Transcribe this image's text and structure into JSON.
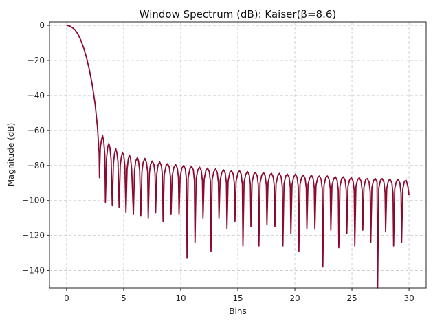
{
  "chart_data": {
    "type": "line",
    "title": "Window Spectrum (dB): Kaiser(β=8.6)",
    "xlabel": "Bins",
    "ylabel": "Magnitude (dB)",
    "xlim": [
      -1.5,
      31.5
    ],
    "ylim": [
      -150,
      2
    ],
    "xticks": [
      0,
      5,
      10,
      15,
      20,
      25,
      30
    ],
    "yticks": [
      0,
      -20,
      -40,
      -60,
      -80,
      -100,
      -120,
      -140
    ],
    "grid": true,
    "line_color": "#8b0a2e",
    "series": [
      {
        "points": [
          [
            0,
            0
          ],
          [
            0.25,
            -0.3
          ],
          [
            0.5,
            -1.2
          ],
          [
            0.75,
            -2.6
          ],
          [
            1.0,
            -5.0
          ],
          [
            1.25,
            -8.5
          ],
          [
            1.5,
            -13.0
          ],
          [
            1.75,
            -18.5
          ],
          [
            2.0,
            -25.5
          ],
          [
            2.25,
            -34.0
          ],
          [
            2.5,
            -45.0
          ],
          [
            2.7,
            -58.0
          ],
          [
            2.85,
            -73.0
          ],
          [
            2.88,
            -87.0
          ],
          [
            2.95,
            -70.0
          ],
          [
            3.05,
            -65.5
          ],
          [
            3.15,
            -63.0
          ],
          [
            3.25,
            -66.0
          ],
          [
            3.35,
            -74.0
          ],
          [
            3.4,
            -101.0
          ],
          [
            3.5,
            -76.0
          ],
          [
            3.6,
            -69.5
          ],
          [
            3.7,
            -67.5
          ],
          [
            3.8,
            -70.0
          ],
          [
            3.9,
            -77.0
          ],
          [
            4.0,
            -103.0
          ],
          [
            4.1,
            -79.0
          ],
          [
            4.2,
            -73.0
          ],
          [
            4.3,
            -70.5
          ],
          [
            4.4,
            -72.5
          ],
          [
            4.5,
            -78.0
          ],
          [
            4.6,
            -104.0
          ],
          [
            4.7,
            -80.0
          ],
          [
            4.8,
            -75.0
          ],
          [
            4.9,
            -72.5
          ],
          [
            5.0,
            -74.0
          ],
          [
            5.1,
            -80.0
          ],
          [
            5.2,
            -107.0
          ],
          [
            5.3,
            -82.0
          ],
          [
            5.4,
            -76.5
          ],
          [
            5.5,
            -74.0
          ],
          [
            5.6,
            -76.0
          ],
          [
            5.7,
            -82.0
          ],
          [
            5.85,
            -108.0
          ],
          [
            5.95,
            -83.0
          ],
          [
            6.05,
            -77.5
          ],
          [
            6.2,
            -75.5
          ],
          [
            6.3,
            -77.5
          ],
          [
            6.4,
            -83.0
          ],
          [
            6.5,
            -109.0
          ],
          [
            6.6,
            -83.5
          ],
          [
            6.7,
            -78.5
          ],
          [
            6.85,
            -76.0
          ],
          [
            7.0,
            -78.5
          ],
          [
            7.1,
            -84.0
          ],
          [
            7.15,
            -110.0
          ],
          [
            7.25,
            -84.5
          ],
          [
            7.35,
            -79.5
          ],
          [
            7.5,
            -77.5
          ],
          [
            7.65,
            -79.5
          ],
          [
            7.75,
            -85.0
          ],
          [
            7.8,
            -107.0
          ],
          [
            7.9,
            -85.0
          ],
          [
            8.0,
            -80.0
          ],
          [
            8.15,
            -78.0
          ],
          [
            8.3,
            -80.0
          ],
          [
            8.4,
            -86.0
          ],
          [
            8.45,
            -112.0
          ],
          [
            8.55,
            -85.5
          ],
          [
            8.7,
            -80.5
          ],
          [
            8.85,
            -79.0
          ],
          [
            9.0,
            -81.0
          ],
          [
            9.1,
            -86.5
          ],
          [
            9.15,
            -108.0
          ],
          [
            9.25,
            -86.0
          ],
          [
            9.4,
            -81.0
          ],
          [
            9.55,
            -79.5
          ],
          [
            9.7,
            -81.5
          ],
          [
            9.8,
            -87.0
          ],
          [
            9.85,
            -108.0
          ],
          [
            9.95,
            -86.5
          ],
          [
            10.1,
            -81.5
          ],
          [
            10.25,
            -80.0
          ],
          [
            10.4,
            -82.0
          ],
          [
            10.5,
            -88.0
          ],
          [
            10.55,
            -133.0
          ],
          [
            10.65,
            -87.0
          ],
          [
            10.8,
            -82.0
          ],
          [
            10.95,
            -80.5
          ],
          [
            11.1,
            -82.5
          ],
          [
            11.2,
            -89.0
          ],
          [
            11.25,
            -124.0
          ],
          [
            11.35,
            -87.5
          ],
          [
            11.5,
            -82.5
          ],
          [
            11.65,
            -81.0
          ],
          [
            11.8,
            -83.0
          ],
          [
            11.9,
            -89.0
          ],
          [
            11.95,
            -110.0
          ],
          [
            12.05,
            -88.0
          ],
          [
            12.2,
            -83.0
          ],
          [
            12.35,
            -81.5
          ],
          [
            12.5,
            -83.5
          ],
          [
            12.6,
            -89.5
          ],
          [
            12.65,
            -129.0
          ],
          [
            12.75,
            -88.0
          ],
          [
            12.9,
            -83.5
          ],
          [
            13.05,
            -82.0
          ],
          [
            13.2,
            -84.0
          ],
          [
            13.3,
            -90.0
          ],
          [
            13.35,
            -110.0
          ],
          [
            13.45,
            -88.5
          ],
          [
            13.6,
            -84.0
          ],
          [
            13.75,
            -82.5
          ],
          [
            13.9,
            -84.5
          ],
          [
            14.0,
            -90.0
          ],
          [
            14.05,
            -116.0
          ],
          [
            14.15,
            -89.0
          ],
          [
            14.3,
            -84.0
          ],
          [
            14.45,
            -83.0
          ],
          [
            14.6,
            -85.0
          ],
          [
            14.7,
            -90.5
          ],
          [
            14.75,
            -112.0
          ],
          [
            14.85,
            -89.0
          ],
          [
            15.0,
            -84.5
          ],
          [
            15.15,
            -83.0
          ],
          [
            15.3,
            -85.0
          ],
          [
            15.4,
            -91.0
          ],
          [
            15.45,
            -126.0
          ],
          [
            15.55,
            -89.5
          ],
          [
            15.7,
            -85.0
          ],
          [
            15.85,
            -83.5
          ],
          [
            16.0,
            -85.5
          ],
          [
            16.1,
            -91.0
          ],
          [
            16.15,
            -115.0
          ],
          [
            16.25,
            -89.5
          ],
          [
            16.4,
            -85.0
          ],
          [
            16.55,
            -84.0
          ],
          [
            16.7,
            -86.0
          ],
          [
            16.8,
            -91.5
          ],
          [
            16.85,
            -126.0
          ],
          [
            16.95,
            -90.0
          ],
          [
            17.1,
            -85.5
          ],
          [
            17.25,
            -84.0
          ],
          [
            17.4,
            -86.0
          ],
          [
            17.5,
            -91.5
          ],
          [
            17.55,
            -114.0
          ],
          [
            17.65,
            -90.0
          ],
          [
            17.8,
            -85.5
          ],
          [
            17.95,
            -84.5
          ],
          [
            18.1,
            -86.5
          ],
          [
            18.2,
            -92.0
          ],
          [
            18.25,
            -115.0
          ],
          [
            18.35,
            -90.5
          ],
          [
            18.5,
            -86.0
          ],
          [
            18.65,
            -84.5
          ],
          [
            18.8,
            -86.5
          ],
          [
            18.9,
            -92.0
          ],
          [
            18.95,
            -126.0
          ],
          [
            19.05,
            -90.5
          ],
          [
            19.2,
            -86.0
          ],
          [
            19.35,
            -85.0
          ],
          [
            19.5,
            -87.0
          ],
          [
            19.6,
            -92.5
          ],
          [
            19.65,
            -119.0
          ],
          [
            19.75,
            -91.0
          ],
          [
            19.9,
            -86.5
          ],
          [
            20.05,
            -85.0
          ],
          [
            20.2,
            -87.0
          ],
          [
            20.3,
            -92.5
          ],
          [
            20.35,
            -129.0
          ],
          [
            20.45,
            -91.0
          ],
          [
            20.6,
            -86.5
          ],
          [
            20.75,
            -85.5
          ],
          [
            20.9,
            -87.5
          ],
          [
            21.0,
            -93.0
          ],
          [
            21.05,
            -116.0
          ],
          [
            21.15,
            -91.0
          ],
          [
            21.3,
            -87.0
          ],
          [
            21.45,
            -85.5
          ],
          [
            21.6,
            -87.5
          ],
          [
            21.7,
            -93.0
          ],
          [
            21.75,
            -116.0
          ],
          [
            21.85,
            -91.5
          ],
          [
            22.0,
            -87.0
          ],
          [
            22.15,
            -86.0
          ],
          [
            22.3,
            -88.0
          ],
          [
            22.4,
            -93.5
          ],
          [
            22.45,
            -138.0
          ],
          [
            22.55,
            -91.5
          ],
          [
            22.7,
            -87.0
          ],
          [
            22.85,
            -86.0
          ],
          [
            23.0,
            -88.0
          ],
          [
            23.1,
            -93.5
          ],
          [
            23.15,
            -117.0
          ],
          [
            23.25,
            -91.5
          ],
          [
            23.4,
            -87.5
          ],
          [
            23.55,
            -86.5
          ],
          [
            23.7,
            -88.5
          ],
          [
            23.8,
            -94.0
          ],
          [
            23.85,
            -127.0
          ],
          [
            23.95,
            -92.0
          ],
          [
            24.1,
            -87.5
          ],
          [
            24.25,
            -86.5
          ],
          [
            24.4,
            -88.5
          ],
          [
            24.5,
            -94.0
          ],
          [
            24.55,
            -119.0
          ],
          [
            24.65,
            -92.0
          ],
          [
            24.8,
            -88.0
          ],
          [
            24.95,
            -87.0
          ],
          [
            25.1,
            -89.0
          ],
          [
            25.2,
            -94.5
          ],
          [
            25.25,
            -126.0
          ],
          [
            25.35,
            -92.0
          ],
          [
            25.5,
            -88.0
          ],
          [
            25.65,
            -87.0
          ],
          [
            25.8,
            -89.0
          ],
          [
            25.9,
            -94.5
          ],
          [
            25.95,
            -117.0
          ],
          [
            26.05,
            -92.5
          ],
          [
            26.2,
            -88.0
          ],
          [
            26.35,
            -87.5
          ],
          [
            26.5,
            -89.5
          ],
          [
            26.6,
            -95.0
          ],
          [
            26.65,
            -124.0
          ],
          [
            26.75,
            -92.5
          ],
          [
            26.9,
            -88.5
          ],
          [
            27.05,
            -87.5
          ],
          [
            27.2,
            -89.5
          ],
          [
            27.25,
            -150.0
          ],
          [
            27.35,
            -93.0
          ],
          [
            27.5,
            -88.5
          ],
          [
            27.65,
            -87.5
          ],
          [
            27.8,
            -89.5
          ],
          [
            27.9,
            -95.5
          ],
          [
            27.95,
            -118.0
          ],
          [
            28.05,
            -93.0
          ],
          [
            28.2,
            -88.5
          ],
          [
            28.35,
            -88.0
          ],
          [
            28.5,
            -90.0
          ],
          [
            28.6,
            -96.0
          ],
          [
            28.65,
            -126.0
          ],
          [
            28.75,
            -93.0
          ],
          [
            28.9,
            -89.0
          ],
          [
            29.05,
            -88.0
          ],
          [
            29.2,
            -90.0
          ],
          [
            29.3,
            -96.0
          ],
          [
            29.35,
            -124.0
          ],
          [
            29.45,
            -93.5
          ],
          [
            29.6,
            -89.0
          ],
          [
            29.75,
            -88.5
          ],
          [
            29.9,
            -92.0
          ],
          [
            30.0,
            -97.0
          ]
        ]
      }
    ]
  }
}
